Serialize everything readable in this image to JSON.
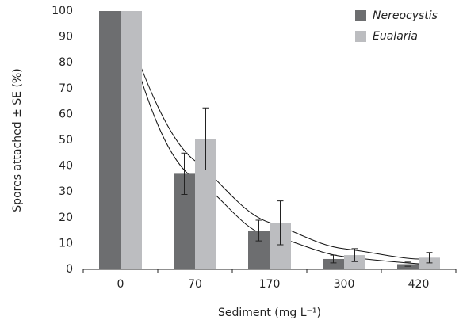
{
  "chart_data": {
    "type": "bar",
    "x_label": "Sediment (mg L⁻¹)",
    "y_label": "Spores attached ± SE (%)",
    "categories": [
      "0",
      "70",
      "170",
      "300",
      "420"
    ],
    "series": [
      {
        "name": "Nereocystis",
        "color": "#6d6e70",
        "values": [
          100,
          37,
          15,
          4,
          2
        ],
        "errors": [
          0,
          8,
          4,
          1.5,
          0.8
        ]
      },
      {
        "name": "Eualaria",
        "color": "#bcbdc0",
        "values": [
          100,
          50.5,
          18,
          5.5,
          4.5
        ],
        "errors": [
          0,
          12,
          8.5,
          2.5,
          2
        ]
      }
    ],
    "ylim": [
      0,
      100
    ],
    "yticks": [
      0,
      10,
      20,
      30,
      40,
      50,
      60,
      70,
      80,
      90,
      100
    ],
    "grid": false,
    "legend": "top-right"
  }
}
